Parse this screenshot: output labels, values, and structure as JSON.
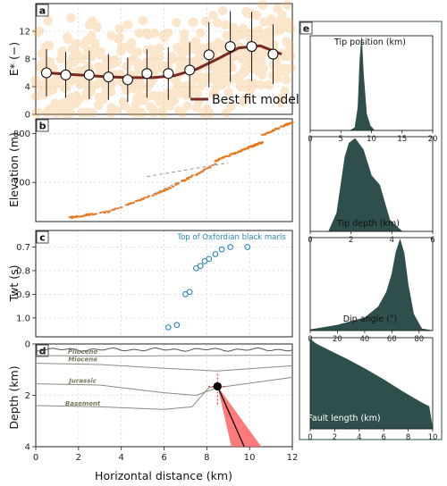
{
  "figure": {
    "x_axis_label": "Horizontal distance (km)",
    "colors": {
      "scatter_orange": "#f4a94a",
      "model_line": "#7a2a22",
      "dark_green": "#2e4f4b",
      "elevation_orange": "#e8781e",
      "twt_blue": "#2a86b8",
      "cone_red": "#ff6464",
      "panel_e_border": "#2e4f4b"
    }
  },
  "chart_data": [
    {
      "panel": "a",
      "type": "scatter",
      "ylabel": "E* (−)",
      "xlim": [
        0,
        12
      ],
      "ylim": [
        0,
        16
      ],
      "xticks": [
        0,
        2,
        4,
        6,
        8,
        10,
        12
      ],
      "yticks": [
        0,
        4,
        8,
        12
      ],
      "grid": true,
      "legend": {
        "label": "Best fit model",
        "placement": "bottom-right"
      },
      "model_curve": {
        "x": [
          0.5,
          1.5,
          2.5,
          3.5,
          4.5,
          5.5,
          6.5,
          7.5,
          8.5,
          9.5,
          10.5,
          11.5
        ],
        "y": [
          6.0,
          5.8,
          5.6,
          5.4,
          5.3,
          5.3,
          5.6,
          6.5,
          8.0,
          9.6,
          9.9,
          8.7
        ]
      },
      "binned_points": {
        "x": [
          0.5,
          1.4,
          2.5,
          3.4,
          4.3,
          5.2,
          6.2,
          7.2,
          8.1,
          9.1,
          10.1,
          11.1
        ],
        "y": [
          6.0,
          5.7,
          5.7,
          5.4,
          5.0,
          5.9,
          5.9,
          6.4,
          8.6,
          9.8,
          9.8,
          8.7
        ],
        "err": [
          3.4,
          3.3,
          3.5,
          3.3,
          3.2,
          3.5,
          3.8,
          4.0,
          4.7,
          5.1,
          5.0,
          4.3
        ]
      }
    },
    {
      "panel": "b",
      "type": "scatter",
      "ylabel": "Elevation (m)",
      "xlim": [
        0,
        12
      ],
      "ylim": [
        620,
        830
      ],
      "yticks": [
        700,
        800
      ],
      "grid": true,
      "profile_segments": [
        {
          "x": [
            1.6,
            3.4
          ],
          "y": [
            628,
            640
          ]
        },
        {
          "x": [
            3.4,
            6.0
          ],
          "y": [
            640,
            683
          ]
        },
        {
          "x": [
            6.0,
            8.4
          ],
          "y": [
            683,
            737
          ]
        },
        {
          "x": [
            8.4,
            9.9
          ],
          "y": [
            744,
            770
          ]
        },
        {
          "x": [
            9.9,
            10.6
          ],
          "y": [
            770,
            782
          ]
        },
        {
          "x": [
            10.6,
            12.0
          ],
          "y": [
            797,
            823
          ]
        }
      ],
      "dashed_lines": [
        {
          "x": [
            5.2,
            9.0
          ],
          "y": [
            712,
            740
          ]
        },
        {
          "x": [
            5.2,
            7.4
          ],
          "y": [
            670,
            716
          ]
        }
      ]
    },
    {
      "panel": "c",
      "type": "scatter",
      "ylabel": "Twt (s)",
      "title": "Top of Oxfordian black marls",
      "xlim": [
        0,
        12
      ],
      "ylim": [
        1.08,
        0.63
      ],
      "yticks": [
        0.7,
        0.8,
        0.9,
        1.0
      ],
      "grid": true,
      "x": [
        6.2,
        6.6,
        7.0,
        7.2,
        7.5,
        7.7,
        7.9,
        8.1,
        8.4,
        8.7,
        9.1,
        9.9
      ],
      "y": [
        1.04,
        1.03,
        0.9,
        0.89,
        0.79,
        0.78,
        0.76,
        0.75,
        0.73,
        0.71,
        0.7,
        0.7
      ]
    },
    {
      "panel": "d",
      "type": "line",
      "ylabel": "Depth (km)",
      "xlim": [
        0,
        12
      ],
      "ylim": [
        4,
        0
      ],
      "xticks": [
        0,
        2,
        4,
        6,
        8,
        10,
        12
      ],
      "yticks": [
        0,
        2,
        4
      ],
      "grid": true,
      "horizons": [
        {
          "name": "Pliocene",
          "x": [
            0,
            3,
            6,
            9,
            12
          ],
          "y": [
            0.45,
            0.48,
            0.46,
            0.45,
            0.44
          ]
        },
        {
          "name": "Miocene",
          "x": [
            0,
            3,
            6,
            8.5,
            12
          ],
          "y": [
            0.75,
            0.8,
            0.95,
            1.05,
            0.85
          ]
        },
        {
          "name": "Jurassic",
          "x": [
            0,
            3,
            6,
            7.5,
            8.5,
            12
          ],
          "y": [
            1.55,
            1.6,
            1.9,
            2.0,
            1.7,
            1.3
          ]
        },
        {
          "name": "Basement",
          "x": [
            0,
            3,
            6,
            7.3,
            8.1,
            8.6
          ],
          "y": [
            2.4,
            2.45,
            2.55,
            2.45,
            1.7,
            1.65
          ]
        }
      ],
      "fault_tip": {
        "x": 8.5,
        "y": 1.65
      },
      "fault_line": {
        "x": [
          8.5,
          9.75
        ],
        "y": [
          1.65,
          4.0
        ]
      },
      "uncertainty_cone": {
        "x": [
          8.5,
          9.15,
          10.55
        ],
        "y": [
          1.65,
          4.0,
          4.0
        ]
      }
    },
    {
      "panel": "e",
      "type": "area",
      "histograms": [
        {
          "label": "Tip position (km)",
          "xlim": [
            0,
            20
          ],
          "xticks": [
            0,
            5,
            10,
            15,
            20
          ],
          "x": [
            0,
            6.5,
            7.3,
            7.8,
            8.1,
            8.4,
            8.7,
            9.2,
            9.8,
            10.5,
            20
          ],
          "y": [
            0,
            0,
            0.03,
            0.25,
            0.75,
            1.0,
            0.6,
            0.18,
            0.05,
            0,
            0
          ]
        },
        {
          "label": "Tip depth (km)",
          "xlim": [
            0,
            6
          ],
          "xticks": [
            0,
            2,
            4,
            6
          ],
          "x": [
            0,
            0.9,
            1.3,
            1.7,
            1.9,
            2.2,
            2.6,
            3.0,
            3.4,
            3.9,
            4.5,
            6
          ],
          "y": [
            0,
            0,
            0.2,
            0.8,
            0.95,
            1.0,
            0.88,
            0.6,
            0.5,
            0.12,
            0,
            0
          ]
        },
        {
          "label": "Dip angle (°)",
          "xlim": [
            0,
            90
          ],
          "xticks": [
            0,
            20,
            40,
            60,
            80
          ],
          "x": [
            0,
            20,
            40,
            50,
            56,
            60,
            63,
            66,
            69,
            72,
            76,
            82,
            90
          ],
          "y": [
            0.01,
            0.06,
            0.14,
            0.26,
            0.42,
            0.62,
            0.86,
            1.0,
            0.85,
            0.5,
            0.18,
            0.02,
            0
          ]
        },
        {
          "label": "Fault length (km)",
          "xlim": [
            0,
            10
          ],
          "xticks": [
            0,
            2,
            4,
            6,
            8,
            10
          ],
          "x": [
            0,
            0.5,
            1.5,
            3.0,
            4.5,
            6.0,
            7.5,
            9.0,
            9.7,
            10
          ],
          "y": [
            1.0,
            0.95,
            0.88,
            0.78,
            0.67,
            0.55,
            0.42,
            0.3,
            0.25,
            0
          ]
        }
      ]
    }
  ]
}
